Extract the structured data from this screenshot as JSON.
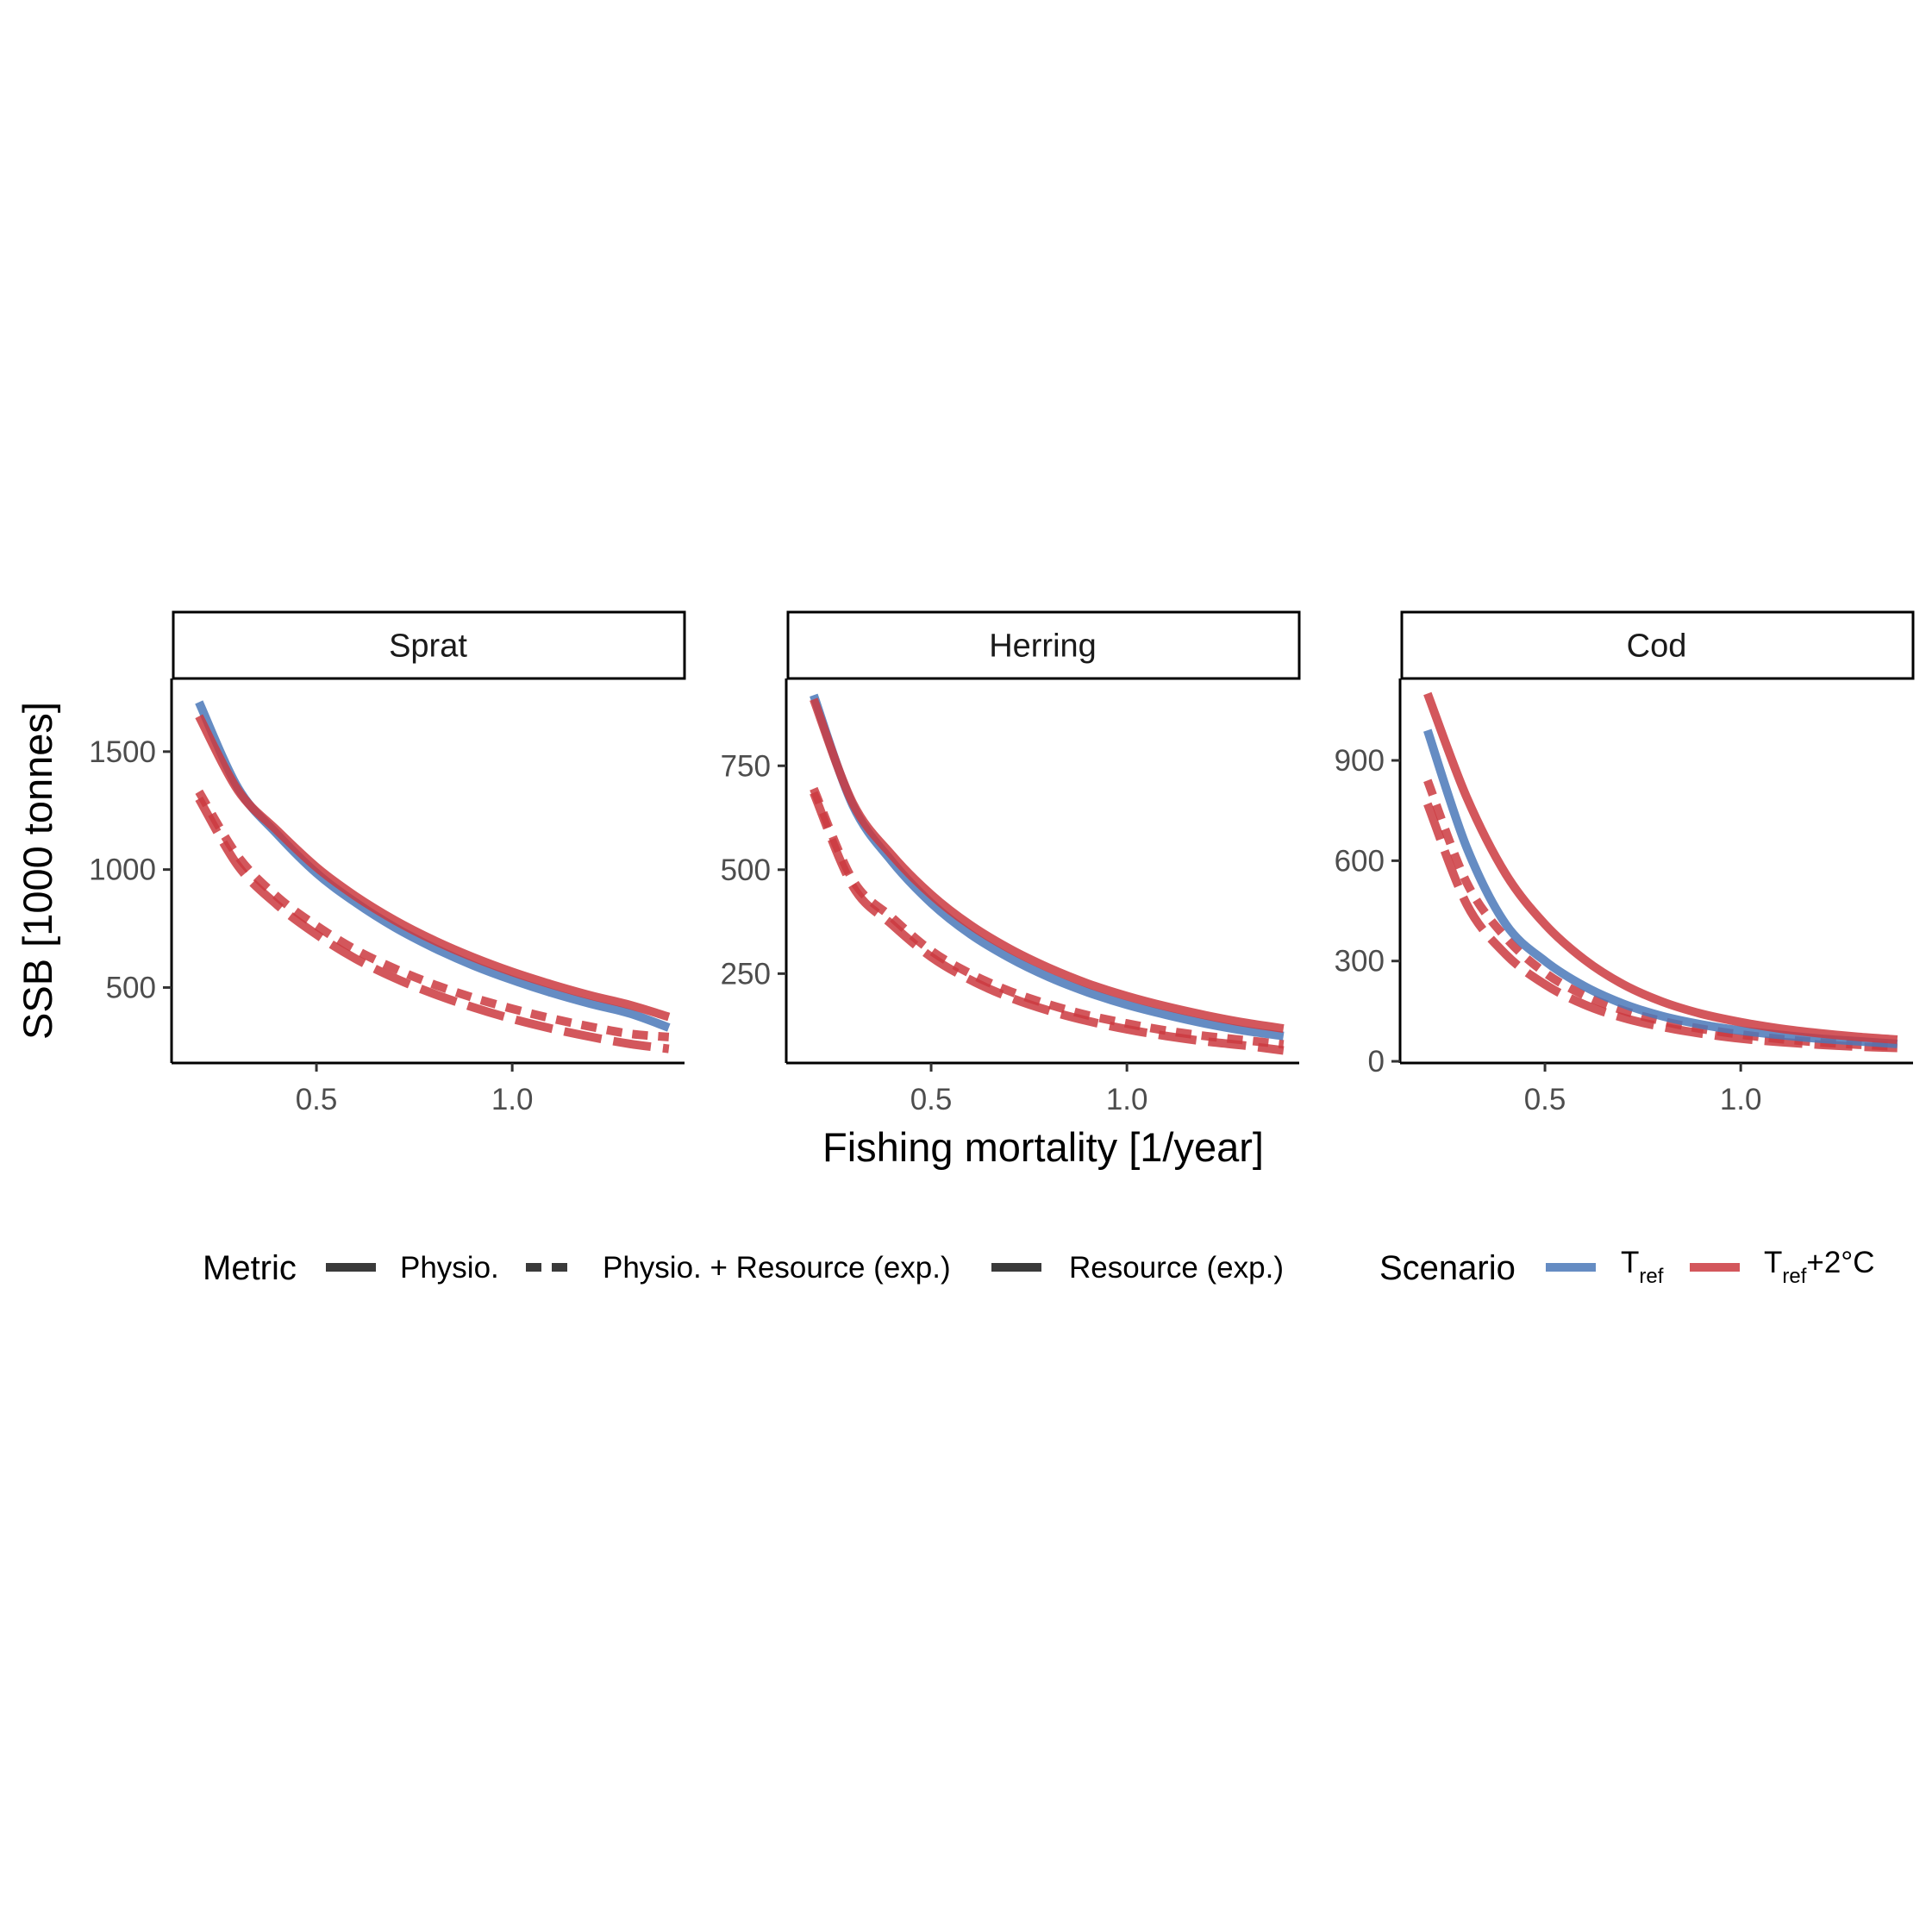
{
  "chart_data": {
    "type": "line",
    "xlabel": "Fishing mortality [1/year]",
    "ylabel": "SSB [1000 tonnes]",
    "grid": false,
    "legend_position": "bottom",
    "colors": {
      "Tref": "#4a78b8",
      "Tref+2C": "#cb3a3f"
    },
    "metric_legend": {
      "title": "Metric",
      "items": [
        {
          "key": "physio",
          "label": "Physio.",
          "dash": "solid"
        },
        {
          "key": "physio_res",
          "label": "Physio. + Resource (exp.)",
          "dash": "dashed"
        },
        {
          "key": "res",
          "label": "Resource (exp.)",
          "dash": "longdash"
        }
      ]
    },
    "scenario_legend": {
      "title": "Scenario",
      "items": [
        {
          "key": "Tref",
          "main": "T",
          "sub": "ref",
          "suffix": "",
          "color": "#4a78b8"
        },
        {
          "key": "Tref+2C",
          "main": "T",
          "sub": "ref",
          "suffix": "+2°C",
          "color": "#cb3a3f"
        }
      ]
    },
    "x_range": [
      0.2,
      1.4
    ],
    "x_ticks": [
      "0.5",
      "1.0"
    ],
    "panels": [
      {
        "title": "Sprat",
        "ylim": [
          180,
          1810
        ],
        "y_ticks": [
          "500",
          "1000",
          "1500"
        ],
        "series": [
          {
            "metric": "physio",
            "scenario": "Tref",
            "x": [
              0.2,
              0.3,
              0.4,
              0.5,
              0.6,
              0.7,
              0.8,
              0.9,
              1.0,
              1.1,
              1.2,
              1.3,
              1.4
            ],
            "y": [
              1710,
              1345,
              1150,
              985,
              860,
              755,
              668,
              594,
              532,
              478,
              431,
              390,
              330
            ]
          },
          {
            "metric": "physio",
            "scenario": "Tref+2C",
            "x": [
              0.2,
              0.3,
              0.4,
              0.5,
              0.6,
              0.7,
              0.8,
              0.9,
              1.0,
              1.1,
              1.2,
              1.3,
              1.4
            ],
            "y": [
              1650,
              1335,
              1165,
              1010,
              887,
              785,
              700,
              628,
              566,
              513,
              466,
              426,
              375
            ]
          },
          {
            "metric": "physio_res",
            "scenario": "Tref+2C",
            "x": [
              0.2,
              0.3,
              0.4,
              0.5,
              0.6,
              0.7,
              0.8,
              0.9,
              1.0,
              1.1,
              1.2,
              1.3,
              1.4
            ],
            "y": [
              1330,
              1055,
              885,
              762,
              660,
              580,
              513,
              457,
              410,
              369,
              334,
              304,
              290
            ]
          },
          {
            "metric": "res",
            "scenario": "Tref+2C",
            "x": [
              0.2,
              0.3,
              0.4,
              0.5,
              0.6,
              0.7,
              0.8,
              0.9,
              1.0,
              1.1,
              1.2,
              1.3,
              1.4
            ],
            "y": [
              1300,
              1015,
              850,
              725,
              622,
              540,
              473,
              416,
              367,
              326,
              291,
              261,
              240
            ]
          }
        ]
      },
      {
        "title": "Herring",
        "ylim": [
          35,
          960
        ],
        "y_ticks": [
          "250",
          "500",
          "750"
        ],
        "series": [
          {
            "metric": "physio",
            "scenario": "Tref",
            "x": [
              0.2,
              0.3,
              0.4,
              0.5,
              0.6,
              0.7,
              0.8,
              0.9,
              1.0,
              1.1,
              1.2,
              1.3,
              1.4
            ],
            "y": [
              920,
              655,
              520,
              420,
              345,
              288,
              242,
              205,
              175,
              151,
              130,
              113,
              100
            ]
          },
          {
            "metric": "physio",
            "scenario": "Tref+2C",
            "x": [
              0.2,
              0.3,
              0.4,
              0.5,
              0.6,
              0.7,
              0.8,
              0.9,
              1.0,
              1.1,
              1.2,
              1.3,
              1.4
            ],
            "y": [
              910,
              660,
              535,
              440,
              367,
              310,
              264,
              226,
              196,
              171,
              150,
              132,
              118
            ]
          },
          {
            "metric": "physio_res",
            "scenario": "Tref+2C",
            "x": [
              0.2,
              0.3,
              0.4,
              0.5,
              0.6,
              0.7,
              0.8,
              0.9,
              1.0,
              1.1,
              1.2,
              1.3,
              1.4
            ],
            "y": [
              695,
              475,
              385,
              305,
              250,
              208,
              176,
              150,
              130,
              113,
              100,
              90,
              80
            ]
          },
          {
            "metric": "res",
            "scenario": "Tref+2C",
            "x": [
              0.2,
              0.3,
              0.4,
              0.5,
              0.6,
              0.7,
              0.8,
              0.9,
              1.0,
              1.1,
              1.2,
              1.3,
              1.4
            ],
            "y": [
              685,
              460,
              368,
              290,
              235,
              193,
              161,
              136,
              116,
              100,
              87,
              77,
              65
            ]
          }
        ]
      },
      {
        "title": "Cod",
        "ylim": [
          -5,
          1145
        ],
        "y_ticks": [
          "0",
          "300",
          "600",
          "900"
        ],
        "series": [
          {
            "metric": "physio",
            "scenario": "Tref",
            "x": [
              0.2,
              0.3,
              0.4,
              0.5,
              0.6,
              0.7,
              0.8,
              0.9,
              1.0,
              1.1,
              1.2,
              1.3,
              1.4
            ],
            "y": [
              990,
              640,
              410,
              300,
              225,
              172,
              135,
              110,
              92,
              79,
              68,
              60,
              52
            ]
          },
          {
            "metric": "physio",
            "scenario": "Tref+2C",
            "x": [
              0.2,
              0.3,
              0.4,
              0.5,
              0.6,
              0.7,
              0.8,
              0.9,
              1.0,
              1.1,
              1.2,
              1.3,
              1.4
            ],
            "y": [
              1100,
              790,
              560,
              410,
              305,
              230,
              178,
              142,
              117,
              98,
              84,
              73,
              65
            ]
          },
          {
            "metric": "physio_res",
            "scenario": "Tref+2C",
            "x": [
              0.2,
              0.3,
              0.4,
              0.5,
              0.6,
              0.7,
              0.8,
              0.9,
              1.0,
              1.1,
              1.2,
              1.3,
              1.4
            ],
            "y": [
              840,
              535,
              370,
              265,
              198,
              152,
              120,
              97,
              80,
              67,
              57,
              50,
              44
            ]
          },
          {
            "metric": "res",
            "scenario": "Tref+2C",
            "x": [
              0.2,
              0.3,
              0.4,
              0.5,
              0.6,
              0.7,
              0.8,
              0.9,
              1.0,
              1.1,
              1.2,
              1.3,
              1.4
            ],
            "y": [
              770,
              470,
              320,
              230,
              170,
              130,
              103,
              83,
              68,
              58,
              50,
              44,
              40
            ]
          }
        ]
      }
    ]
  }
}
